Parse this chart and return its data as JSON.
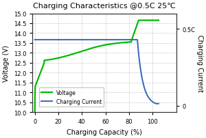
{
  "title": "Charging Characteristics @0.5C 25℃",
  "xlabel": "Charging Capacity (%)",
  "ylabel_left": "Voltage (V)",
  "ylabel_right": "Charging Current",
  "xlim": [
    -2,
    120
  ],
  "ylim_left": [
    10.0,
    15.0
  ],
  "ylim_right": [
    -0.05,
    0.7
  ],
  "xticks": [
    0,
    20,
    40,
    60,
    80,
    100
  ],
  "yticks_left": [
    10.0,
    10.5,
    11.0,
    11.5,
    12.0,
    12.5,
    13.0,
    13.5,
    14.0,
    14.5,
    15.0
  ],
  "yticks_right_vals": [
    0.0,
    0.583
  ],
  "yticks_right_labels": [
    "0",
    "0.5C"
  ],
  "grid_color": "#bbbbbb",
  "voltage_color": "#00bb00",
  "current_color": "#3366bb",
  "bg_color": "#ffffff",
  "legend_voltage": "Voltage",
  "legend_current": "Charging Current",
  "title_fontsize": 8,
  "axis_label_fontsize": 7,
  "tick_fontsize": 6,
  "legend_fontsize": 5.5
}
